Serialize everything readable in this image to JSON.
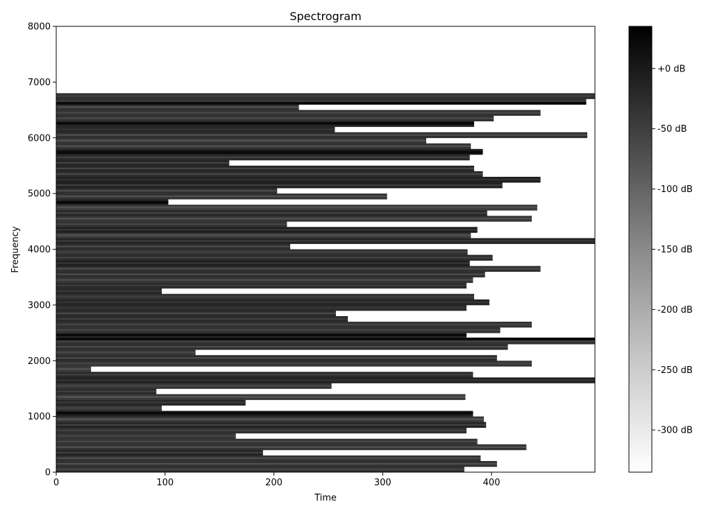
{
  "chart_data": {
    "type": "heatmap",
    "title": "Spectrogram",
    "xlabel": "Time",
    "ylabel": "Frequency",
    "xlim": [
      0,
      495
    ],
    "ylim": [
      0,
      8000
    ],
    "x_ticks": [
      0,
      100,
      200,
      300,
      400
    ],
    "y_ticks": [
      0,
      1000,
      2000,
      3000,
      4000,
      5000,
      6000,
      7000,
      8000
    ],
    "colormap": "gray_r",
    "grid": false,
    "colorbar": {
      "range_db": [
        -335,
        35
      ],
      "ticks": [
        {
          "value": 0,
          "label": "+0 dB"
        },
        {
          "value": -50,
          "label": "-50 dB"
        },
        {
          "value": -100,
          "label": "-100 dB"
        },
        {
          "value": -150,
          "label": "-150 dB"
        },
        {
          "value": -200,
          "label": "-200 dB"
        },
        {
          "value": -250,
          "label": "-250 dB"
        },
        {
          "value": -300,
          "label": "-300 dB"
        }
      ]
    },
    "band_height_hz": 100,
    "band_end_times": [
      375,
      405,
      390,
      190,
      432,
      387,
      165,
      377,
      395,
      393,
      383,
      97,
      174,
      376,
      92,
      253,
      495,
      383,
      32,
      437,
      405,
      128,
      415,
      495,
      377,
      408,
      437,
      268,
      257,
      377,
      398,
      384,
      97,
      377,
      383,
      394,
      445,
      380,
      401,
      378,
      215,
      495,
      381,
      387,
      212,
      437,
      396,
      442,
      103,
      304,
      203,
      410,
      445,
      392,
      384,
      159,
      380,
      392,
      381,
      340,
      488,
      256,
      384,
      402,
      445,
      223,
      487,
      495
    ],
    "dark_band_frequencies": [
      1060,
      2390,
      2460,
      4840,
      5740,
      6260,
      6620
    ]
  }
}
